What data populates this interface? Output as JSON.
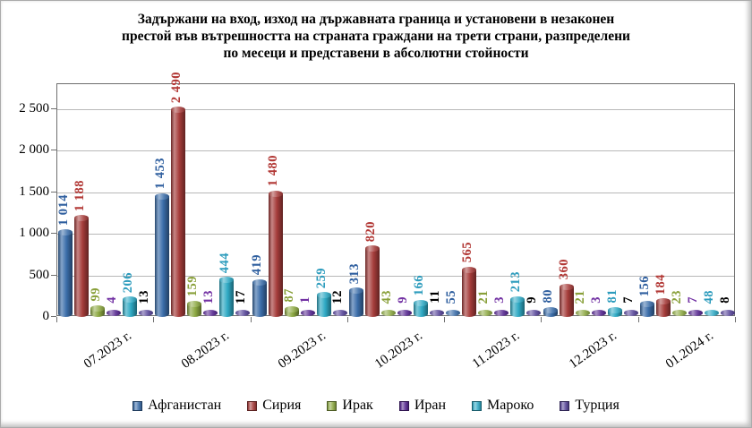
{
  "title_lines": [
    "Задържани на вход, изход на държавната граница и установени в незаконен",
    "престой във вътрешността на страната граждани на трети страни, разпределени",
    "по месеци и представени в абсолютни стойности"
  ],
  "chart_data": {
    "type": "bar",
    "subtype": "3d-cylinder",
    "title": "Задържани на вход, изход на държавната граница и установени в незаконен престой във вътрешността на страната граждани на трети страни, разпределени по месеци и представени в абсолютни стойности",
    "categories": [
      "07.2023 г.",
      "08.2023 г.",
      "09.2023 г.",
      "10.2023 г.",
      "11.2023 г.",
      "12.2023 г.",
      "01.2024 г."
    ],
    "series": [
      {
        "name": "Афганистан",
        "color": "#3B6DA9",
        "label_color": "#2F5F9F",
        "values": [
          1014,
          1453,
          419,
          313,
          55,
          80,
          156
        ],
        "labels": [
          "1 014",
          "1 453",
          "419",
          "313",
          "55",
          "80",
          "156"
        ]
      },
      {
        "name": "Сирия",
        "color": "#A53C3A",
        "label_color": "#B23835",
        "values": [
          1188,
          2490,
          1480,
          820,
          565,
          360,
          184
        ],
        "labels": [
          "1 188",
          "2 490",
          "1 480",
          "820",
          "565",
          "360",
          "184"
        ]
      },
      {
        "name": "Ирак",
        "color": "#8CA842",
        "label_color": "#89A03A",
        "values": [
          99,
          159,
          87,
          43,
          21,
          21,
          23
        ],
        "labels": [
          "99",
          "159",
          "87",
          "43",
          "21",
          "21",
          "23"
        ]
      },
      {
        "name": "Иран",
        "color": "#55258F",
        "label_color": "#7231A3",
        "values": [
          4,
          13,
          1,
          9,
          3,
          3,
          7
        ],
        "labels": [
          "4",
          "13",
          "1",
          "9",
          "3",
          "3",
          "7"
        ]
      },
      {
        "name": "Мароко",
        "color": "#2FA9C4",
        "label_color": "#2D9CBD",
        "values": [
          206,
          444,
          259,
          166,
          213,
          81,
          48
        ],
        "labels": [
          "206",
          "444",
          "259",
          "166",
          "213",
          "81",
          "48"
        ]
      },
      {
        "name": "Турция",
        "color": "#564398",
        "label_color": "#000000",
        "values": [
          13,
          17,
          12,
          11,
          9,
          7,
          8
        ],
        "labels": [
          "13",
          "17",
          "12",
          "11",
          "9",
          "7",
          "8"
        ]
      }
    ],
    "y_axis": {
      "ticks": [
        0,
        500,
        1000,
        1500,
        2000,
        2500
      ],
      "tick_labels": [
        "0",
        "500",
        "1 000",
        "1 500",
        "2 000",
        "2 500"
      ],
      "plot_max": 2800
    },
    "xlabel": "",
    "ylabel": "",
    "grid": true,
    "legend_position": "bottom",
    "colors": {
      "gridline": "#b8b8b8",
      "axis": "#6f6f6f",
      "title_text": "#000000"
    }
  }
}
